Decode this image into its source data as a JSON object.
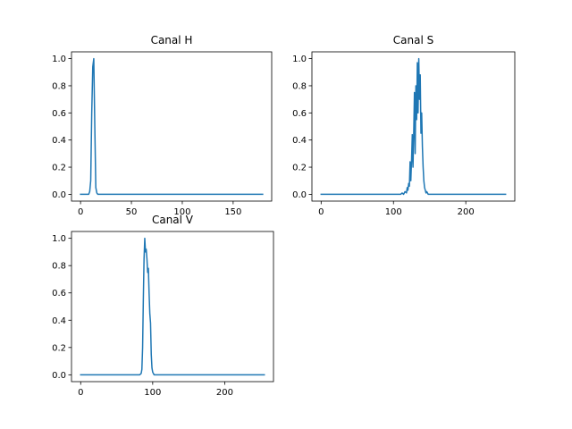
{
  "chart_data": [
    {
      "type": "line",
      "title": "Canal H",
      "xlabel": "",
      "ylabel": "",
      "xlim": [
        -8.9,
        187.9
      ],
      "ylim": [
        -0.05,
        1.05
      ],
      "xticks": [
        0,
        50,
        100,
        150
      ],
      "yticks": [
        0.0,
        0.2,
        0.4,
        0.6,
        0.8,
        1.0
      ],
      "xtick_labels": [
        "0",
        "50",
        "100",
        "150"
      ],
      "ytick_labels": [
        "0.0",
        "0.2",
        "0.4",
        "0.6",
        "0.8",
        "1.0"
      ],
      "grid": false,
      "color": "#1f77b4",
      "x": [
        0,
        8,
        9,
        10,
        11,
        12,
        13,
        14,
        15,
        16,
        17,
        18,
        179
      ],
      "y": [
        0,
        0,
        0.02,
        0.1,
        0.6,
        0.94,
        1.0,
        0.5,
        0.05,
        0.01,
        0,
        0,
        0
      ]
    },
    {
      "type": "line",
      "title": "Canal S",
      "xlabel": "",
      "ylabel": "",
      "xlim": [
        -12.75,
        267.75
      ],
      "ylim": [
        -0.05,
        1.05
      ],
      "xticks": [
        0,
        100,
        200
      ],
      "yticks": [
        0.0,
        0.2,
        0.4,
        0.6,
        0.8,
        1.0
      ],
      "xtick_labels": [
        "0",
        "100",
        "200"
      ],
      "ytick_labels": [
        "0.0",
        "0.2",
        "0.4",
        "0.6",
        "0.8",
        "1.0"
      ],
      "grid": false,
      "color": "#1f77b4",
      "x": [
        0,
        110,
        112,
        114,
        116,
        118,
        119,
        120,
        121,
        122,
        123,
        124,
        125,
        126,
        127,
        128,
        129,
        130,
        131,
        132,
        133,
        134,
        135,
        136,
        137,
        138,
        139,
        140,
        141,
        142,
        143,
        144,
        145,
        146,
        148,
        150,
        255
      ],
      "y": [
        0,
        0,
        0.01,
        0,
        0.02,
        0.01,
        0.05,
        0.03,
        0.08,
        0.06,
        0.24,
        0.1,
        0.25,
        0.44,
        0.2,
        0.45,
        0.75,
        0.3,
        0.8,
        0.55,
        0.97,
        0.6,
        1.0,
        0.7,
        0.88,
        0.45,
        0.6,
        0.35,
        0.2,
        0.1,
        0.05,
        0.03,
        0.01,
        0.02,
        0,
        0,
        0
      ]
    },
    {
      "type": "line",
      "title": "Canal V",
      "xlabel": "",
      "ylabel": "",
      "xlim": [
        -12.75,
        267.75
      ],
      "ylim": [
        -0.05,
        1.05
      ],
      "xticks": [
        0,
        100,
        200
      ],
      "yticks": [
        0.0,
        0.2,
        0.4,
        0.6,
        0.8,
        1.0
      ],
      "xtick_labels": [
        "0",
        "100",
        "200"
      ],
      "ytick_labels": [
        "0.0",
        "0.2",
        "0.4",
        "0.6",
        "0.8",
        "1.0"
      ],
      "grid": false,
      "color": "#1f77b4",
      "x": [
        0,
        82,
        84,
        85,
        86,
        87,
        88,
        89,
        90,
        91,
        92,
        93,
        94,
        95,
        96,
        97,
        98,
        99,
        100,
        101,
        102,
        103,
        255
      ],
      "y": [
        0,
        0,
        0.01,
        0.04,
        0.2,
        0.55,
        0.85,
        1.0,
        0.9,
        0.92,
        0.85,
        0.75,
        0.78,
        0.6,
        0.45,
        0.38,
        0.15,
        0.05,
        0.02,
        0.01,
        0,
        0,
        0
      ]
    }
  ]
}
